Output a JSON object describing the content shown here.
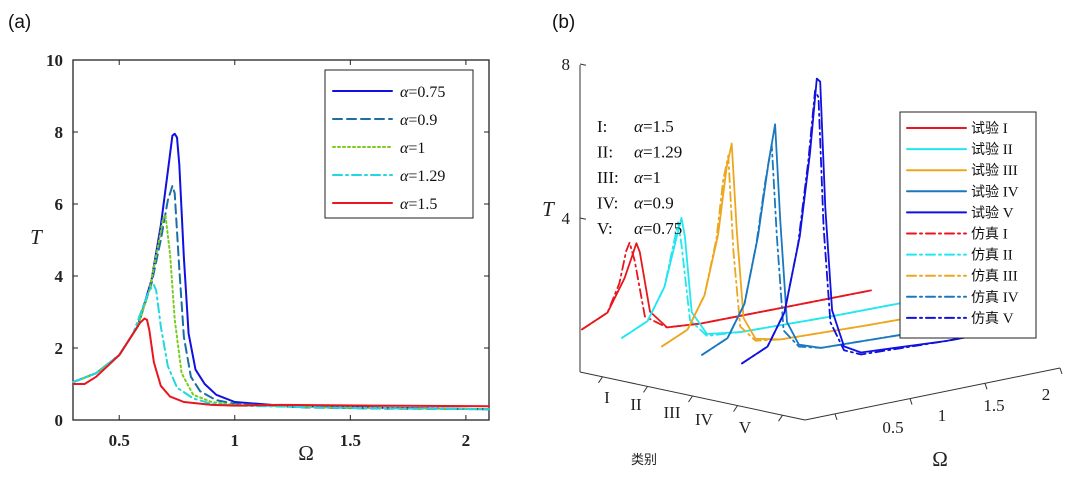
{
  "chart_data": [
    {
      "panel": "(a)",
      "type": "line",
      "xlabel": "Ω",
      "ylabel": "T",
      "xlim": [
        0.3,
        2.1
      ],
      "ylim": [
        0,
        10
      ],
      "xticks": [
        {
          "v": 0.5,
          "label": "0.5"
        },
        {
          "v": 1,
          "label": "1"
        },
        {
          "v": 1.5,
          "label": "1.5"
        },
        {
          "v": 2,
          "label": "2"
        }
      ],
      "yticks": [
        {
          "v": 0,
          "label": "0"
        },
        {
          "v": 2,
          "label": "2"
        },
        {
          "v": 4,
          "label": "4"
        },
        {
          "v": 6,
          "label": "6"
        },
        {
          "v": 8,
          "label": "8"
        },
        {
          "v": 10,
          "label": "10"
        }
      ],
      "legend_position": "top-right",
      "series": [
        {
          "name": "α=0.75",
          "sym": "α",
          "val": "=0.75",
          "color": "#1010e0",
          "dash": "solid",
          "x": [
            0.3,
            0.4,
            0.5,
            0.58,
            0.64,
            0.68,
            0.71,
            0.73,
            0.74,
            0.75,
            0.76,
            0.78,
            0.8,
            0.83,
            0.87,
            0.92,
            1.0,
            1.2,
            1.5,
            1.8,
            2.1
          ],
          "y": [
            1.05,
            1.3,
            1.8,
            2.6,
            3.9,
            5.4,
            6.9,
            7.9,
            7.95,
            7.85,
            7.1,
            4.5,
            2.4,
            1.4,
            1.0,
            0.7,
            0.5,
            0.4,
            0.35,
            0.33,
            0.3
          ]
        },
        {
          "name": "α=0.9",
          "sym": "α",
          "val": "=0.9",
          "color": "#1b6fa8",
          "dash": "dashed",
          "x": [
            0.3,
            0.4,
            0.5,
            0.58,
            0.64,
            0.68,
            0.71,
            0.73,
            0.74,
            0.76,
            0.78,
            0.81,
            0.85,
            0.92,
            1.0,
            1.3,
            1.6,
            2.1
          ],
          "y": [
            1.05,
            1.3,
            1.8,
            2.6,
            3.8,
            5.0,
            6.1,
            6.5,
            6.3,
            4.2,
            2.3,
            1.2,
            0.8,
            0.55,
            0.45,
            0.35,
            0.32,
            0.3
          ]
        },
        {
          "name": "α=1",
          "sym": "α",
          "val": "=1",
          "color": "#7acd1f",
          "dash": "dotted",
          "x": [
            0.3,
            0.4,
            0.5,
            0.58,
            0.63,
            0.67,
            0.69,
            0.7,
            0.72,
            0.74,
            0.77,
            0.82,
            0.9,
            1.0,
            1.4,
            2.1
          ],
          "y": [
            1.05,
            1.3,
            1.8,
            2.6,
            3.6,
            4.9,
            5.6,
            5.7,
            4.6,
            2.8,
            1.3,
            0.7,
            0.5,
            0.42,
            0.35,
            0.3
          ]
        },
        {
          "name": "α=1.29",
          "sym": "α",
          "val": "=1.29",
          "color": "#22d8e0",
          "dash": "dashdot",
          "x": [
            0.3,
            0.4,
            0.5,
            0.56,
            0.6,
            0.63,
            0.65,
            0.66,
            0.68,
            0.71,
            0.75,
            0.82,
            0.9,
            1.0,
            1.5,
            2.1
          ],
          "y": [
            1.05,
            1.3,
            1.8,
            2.4,
            3.1,
            3.6,
            3.75,
            3.6,
            2.6,
            1.5,
            0.9,
            0.6,
            0.45,
            0.4,
            0.33,
            0.3
          ]
        },
        {
          "name": "α=1.5",
          "sym": "α",
          "val": "=1.5",
          "color": "#e8161e",
          "dash": "solid",
          "x": [
            0.3,
            0.35,
            0.4,
            0.5,
            0.55,
            0.59,
            0.61,
            0.62,
            0.63,
            0.65,
            0.68,
            0.72,
            0.78,
            0.9,
            1.0,
            1.2,
            1.6,
            2.1
          ],
          "y": [
            1.0,
            1.0,
            1.2,
            1.8,
            2.3,
            2.7,
            2.82,
            2.78,
            2.5,
            1.6,
            0.95,
            0.65,
            0.5,
            0.42,
            0.4,
            0.42,
            0.4,
            0.38
          ]
        }
      ]
    },
    {
      "panel": "(b)",
      "type": "line",
      "projection": "3d",
      "xlabel": "Ω",
      "ylabel": "T",
      "zlabel": "类别",
      "omega_ticks": [
        {
          "v": 0.5,
          "label": "0.5"
        },
        {
          "v": 1,
          "label": "1"
        },
        {
          "v": 1.5,
          "label": "1.5"
        },
        {
          "v": 2,
          "label": "2"
        }
      ],
      "t_ticks": [
        {
          "v": 4,
          "label": "4"
        },
        {
          "v": 8,
          "label": "8"
        }
      ],
      "categories": [
        "I",
        "II",
        "III",
        "IV",
        "V"
      ],
      "annotations": [
        {
          "cat": "I:",
          "sym": "α",
          "val": "=1.5"
        },
        {
          "cat": "II:",
          "sym": "α",
          "val": "=1.29"
        },
        {
          "cat": "III:",
          "sym": "α",
          "val": "=1"
        },
        {
          "cat": "IV:",
          "sym": "α",
          "val": "=0.9"
        },
        {
          "cat": "V:",
          "sym": "α",
          "val": "=0.75"
        }
      ],
      "legend_position": "top-right",
      "legend": [
        {
          "label": "试验",
          "cat": "I",
          "color": "#e8161e",
          "dash": "solid"
        },
        {
          "label": "试验",
          "cat": "II",
          "color": "#22e6f0",
          "dash": "solid"
        },
        {
          "label": "试验",
          "cat": "III",
          "color": "#eda71e",
          "dash": "solid"
        },
        {
          "label": "试验",
          "cat": "IV",
          "color": "#1a78c0",
          "dash": "solid"
        },
        {
          "label": "试验",
          "cat": "V",
          "color": "#1010e0",
          "dash": "solid"
        },
        {
          "label": "仿真",
          "cat": "I",
          "color": "#e8161e",
          "dash": "dashdot"
        },
        {
          "label": "仿真",
          "cat": "II",
          "color": "#22e6f0",
          "dash": "dashdot"
        },
        {
          "label": "仿真",
          "cat": "III",
          "color": "#eda71e",
          "dash": "dashdot"
        },
        {
          "label": "仿真",
          "cat": "IV",
          "color": "#1a78c0",
          "dash": "dashdot"
        },
        {
          "label": "仿真",
          "cat": "V",
          "color": "#1010e0",
          "dash": "dashdot"
        }
      ],
      "series": [
        {
          "category": "I",
          "color": "#e8161e",
          "experiment": {
            "x": [
              0.3,
              0.45,
              0.55,
              0.6,
              0.62,
              0.64,
              0.7,
              0.8,
              1.0,
              1.5,
              2.0
            ],
            "y": [
              0.9,
              1.2,
              2.0,
              2.6,
              2.85,
              2.6,
              1.0,
              0.5,
              0.42,
              0.4,
              0.38
            ]
          },
          "simulation": {
            "x": [
              0.3,
              0.45,
              0.52,
              0.56,
              0.58,
              0.61,
              0.67,
              0.8,
              1.0,
              1.5,
              2.0
            ],
            "y": [
              0.9,
              1.2,
              1.9,
              2.7,
              2.9,
              2.4,
              0.9,
              0.5,
              0.42,
              0.4,
              0.38
            ]
          }
        },
        {
          "category": "II",
          "color": "#22e6f0",
          "experiment": {
            "x": [
              0.3,
              0.45,
              0.55,
              0.62,
              0.65,
              0.67,
              0.71,
              0.8,
              1.0,
              1.5,
              2.0
            ],
            "y": [
              0.9,
              1.2,
              2.0,
              3.2,
              3.7,
              3.2,
              1.2,
              0.55,
              0.42,
              0.35,
              0.32
            ]
          },
          "simulation": {
            "x": [
              0.3,
              0.45,
              0.55,
              0.6,
              0.63,
              0.65,
              0.7,
              0.8,
              1.0,
              1.5,
              2.0
            ],
            "y": [
              0.9,
              1.2,
              2.0,
              3.0,
              3.6,
              3.0,
              1.0,
              0.5,
              0.42,
              0.35,
              0.32
            ]
          }
        },
        {
          "category": "III",
          "color": "#eda71e",
          "experiment": {
            "x": [
              0.3,
              0.45,
              0.55,
              0.63,
              0.68,
              0.71,
              0.74,
              0.78,
              0.85,
              1.0,
              1.5,
              2.0
            ],
            "y": [
              0.9,
              1.2,
              2.0,
              3.5,
              5.2,
              5.8,
              3.5,
              1.2,
              0.6,
              0.45,
              0.36,
              0.3
            ]
          },
          "simulation": {
            "x": [
              0.3,
              0.45,
              0.55,
              0.62,
              0.66,
              0.69,
              0.72,
              0.76,
              0.85,
              1.0,
              1.5,
              2.0
            ],
            "y": [
              0.9,
              1.2,
              2.0,
              3.4,
              4.9,
              5.5,
              3.0,
              1.0,
              0.55,
              0.45,
              0.36,
              0.3
            ]
          }
        },
        {
          "category": "IV",
          "color": "#1a78c0",
          "experiment": {
            "x": [
              0.3,
              0.45,
              0.55,
              0.63,
              0.69,
              0.73,
              0.76,
              0.8,
              0.87,
              1.0,
              1.5,
              2.0
            ],
            "y": [
              0.9,
              1.2,
              2.0,
              3.7,
              5.5,
              6.5,
              4.0,
              1.3,
              0.65,
              0.45,
              0.36,
              0.3
            ]
          },
          "simulation": {
            "x": [
              0.3,
              0.45,
              0.55,
              0.62,
              0.67,
              0.71,
              0.74,
              0.78,
              0.87,
              1.0,
              1.5,
              2.0
            ],
            "y": [
              0.9,
              1.2,
              2.0,
              3.5,
              5.0,
              6.0,
              3.6,
              1.1,
              0.6,
              0.45,
              0.36,
              0.3
            ]
          }
        },
        {
          "category": "V",
          "color": "#1010e0",
          "experiment": {
            "x": [
              0.3,
              0.45,
              0.55,
              0.64,
              0.7,
              0.74,
              0.76,
              0.79,
              0.83,
              0.9,
              1.0,
              1.5,
              2.0
            ],
            "y": [
              0.9,
              1.2,
              2.0,
              3.9,
              6.0,
              7.9,
              7.8,
              4.5,
              1.8,
              0.8,
              0.55,
              0.4,
              0.35
            ]
          },
          "simulation": {
            "x": [
              0.3,
              0.45,
              0.55,
              0.63,
              0.69,
              0.73,
              0.75,
              0.78,
              0.82,
              0.9,
              1.0,
              1.5,
              2.0
            ],
            "y": [
              0.9,
              1.2,
              2.0,
              3.7,
              5.8,
              7.6,
              7.4,
              4.0,
              1.5,
              0.7,
              0.5,
              0.4,
              0.35
            ]
          }
        }
      ]
    }
  ]
}
